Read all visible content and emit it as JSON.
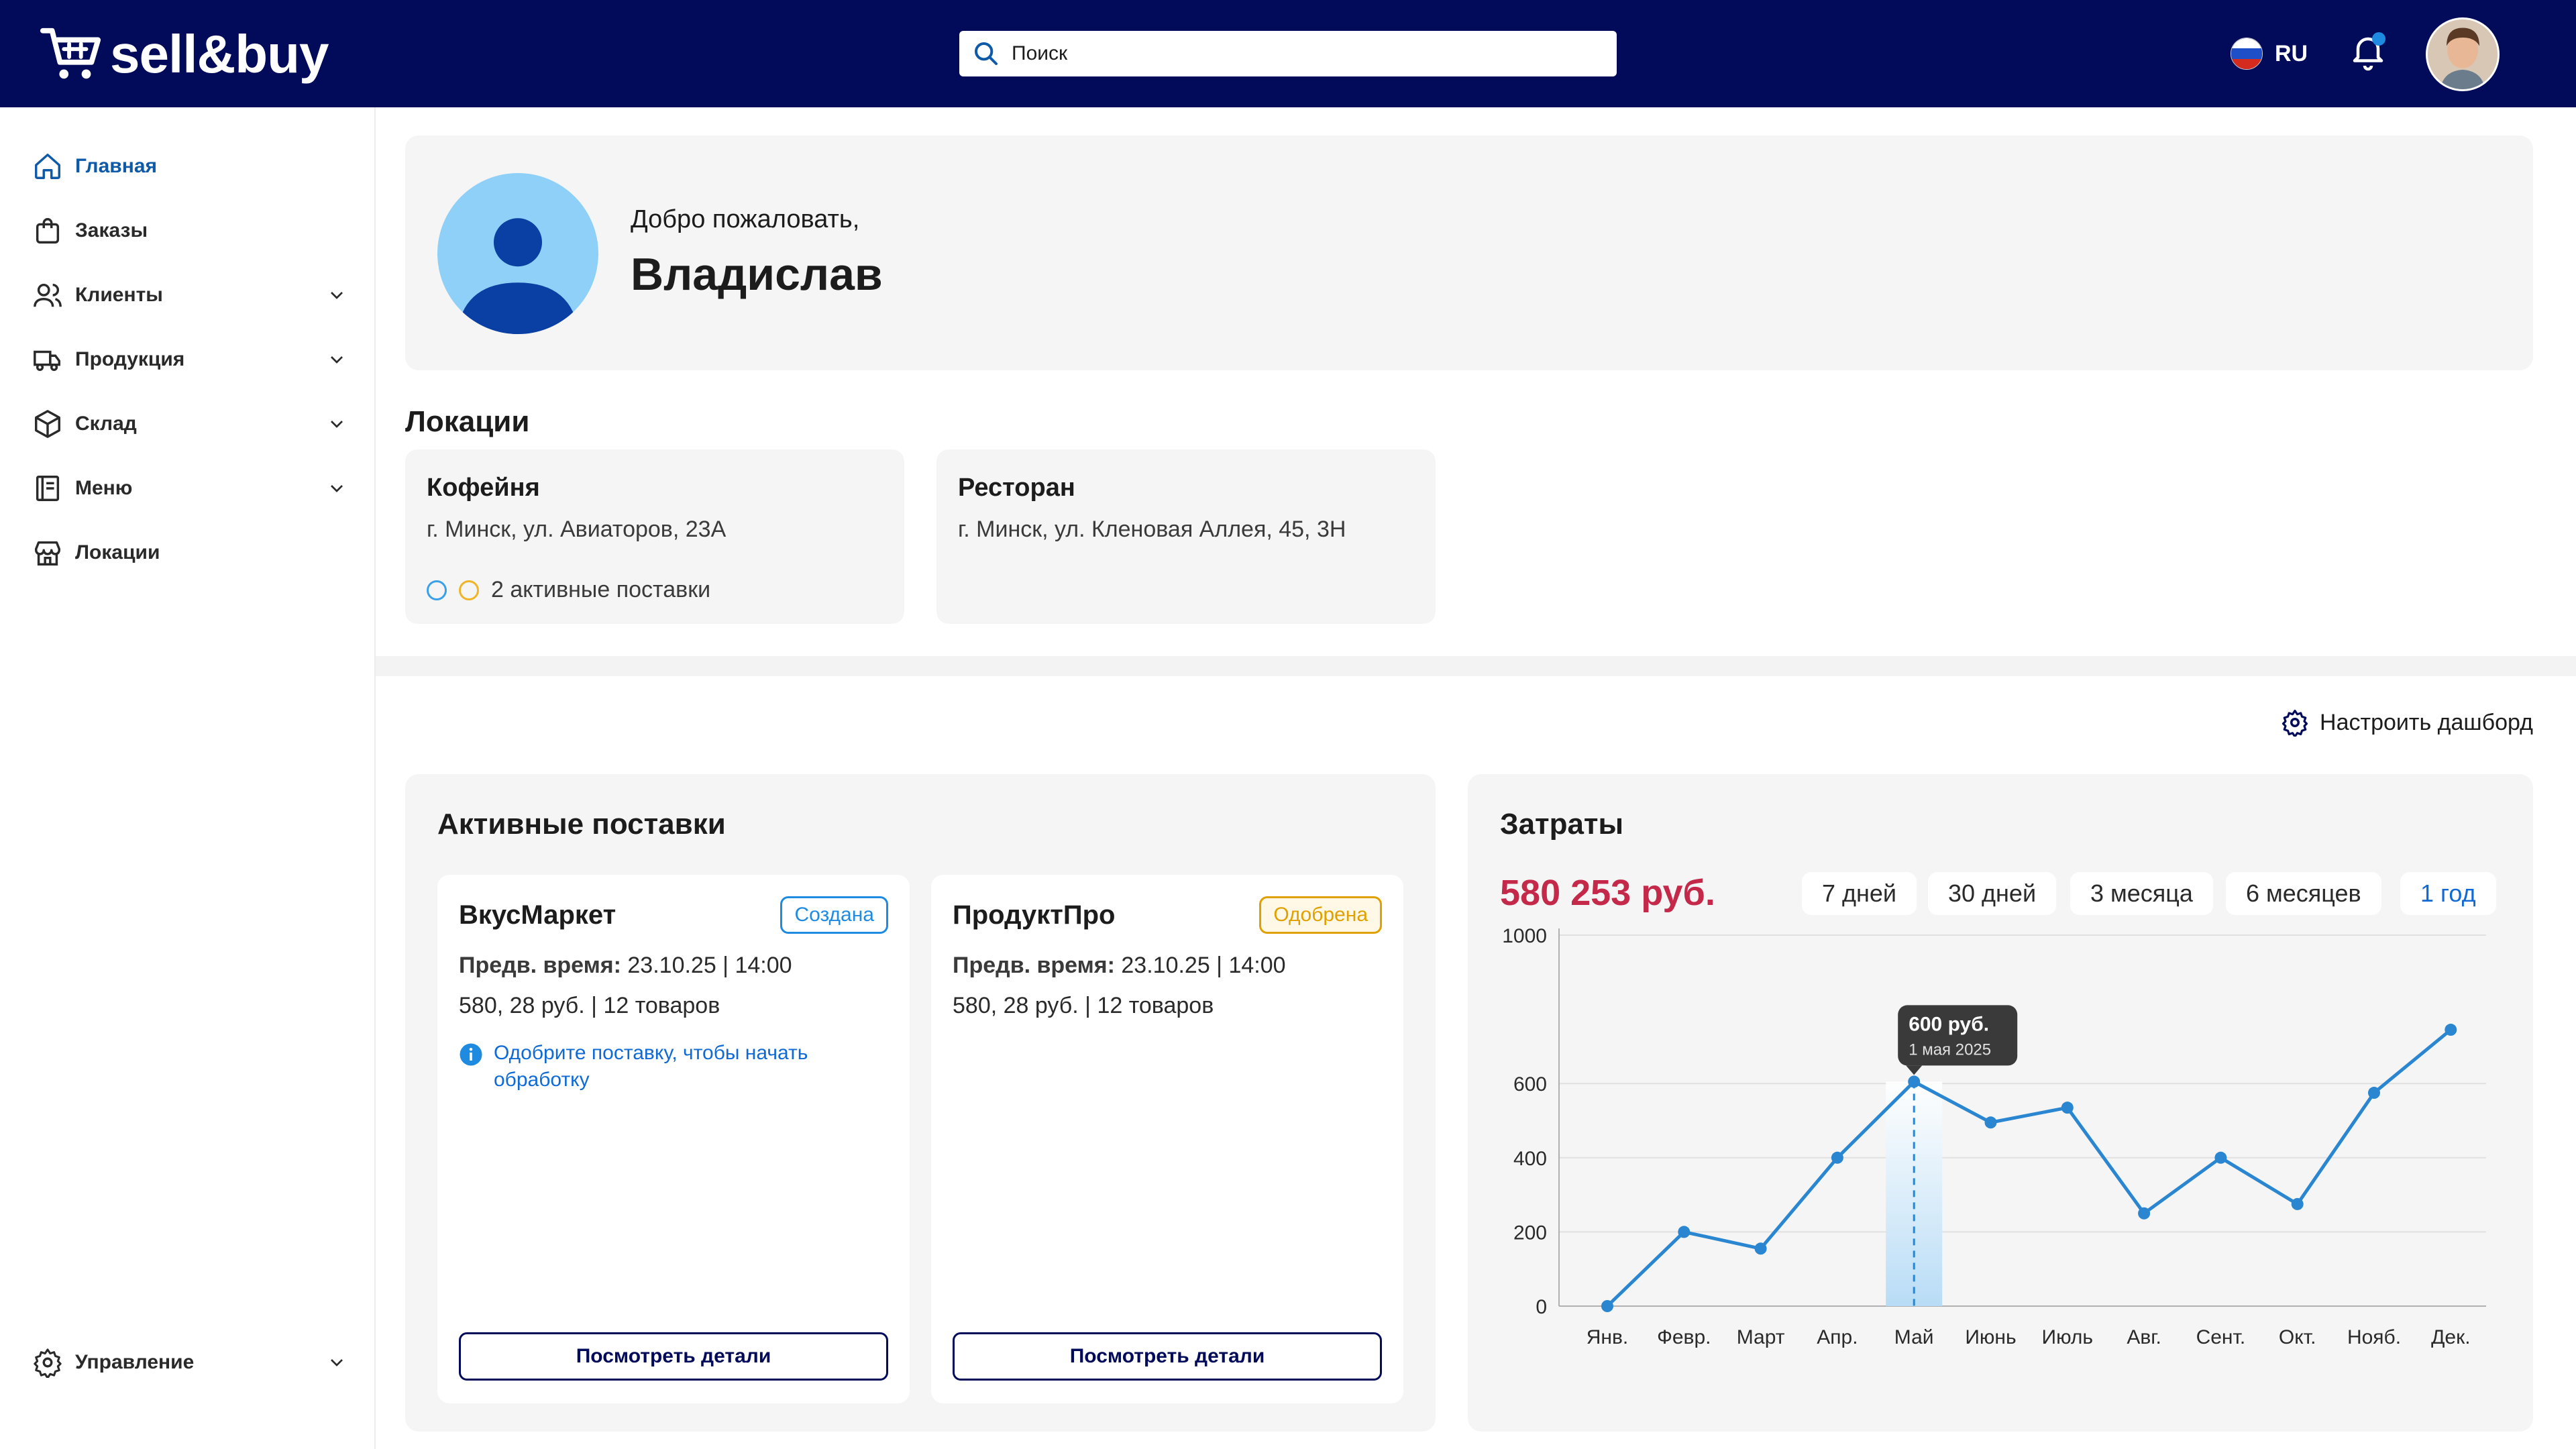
{
  "header": {
    "brand": "sell&buy",
    "search_placeholder": "Поиск",
    "language_code": "RU"
  },
  "sidebar": {
    "items": [
      {
        "label": "Главная",
        "icon": "home-icon",
        "active": true
      },
      {
        "label": "Заказы",
        "icon": "shopping-bag-icon",
        "active": false
      },
      {
        "label": "Клиенты",
        "icon": "users-icon",
        "active": false,
        "expandable": true
      },
      {
        "label": "Продукция",
        "icon": "truck-icon",
        "active": false,
        "expandable": true
      },
      {
        "label": "Склад",
        "icon": "box-icon",
        "active": false,
        "expandable": true
      },
      {
        "label": "Меню",
        "icon": "menu-book-icon",
        "active": false,
        "expandable": true
      },
      {
        "label": "Локации",
        "icon": "store-icon",
        "active": false
      }
    ],
    "footer_item": {
      "label": "Управление",
      "icon": "gear-icon",
      "expandable": true
    }
  },
  "welcome": {
    "subtitle": "Добро пожаловать,",
    "name": "Владислав"
  },
  "locations": {
    "title": "Локации",
    "items": [
      {
        "name": "Кофейня",
        "address": "г. Минск, ул. Авиаторов, 23А",
        "status": "2 активные поставки"
      },
      {
        "name": "Ресторан",
        "address": "г. Минск, ул. Кленовая Аллея, 45, 3Н",
        "status": ""
      }
    ]
  },
  "configure_dashboard": "Настроить дашборд",
  "deliveries": {
    "title": "Активные поставки",
    "items": [
      {
        "supplier": "ВкусМаркет",
        "status": "Создана",
        "status_color": "#1e8ae0",
        "time_label": "Предв. время:",
        "time_value": "23.10.25 | 14:00",
        "summary": "580, 28 руб. | 12 товаров",
        "hint": "Одобрите поставку, чтобы начать обработку",
        "button": "Посмотреть детали"
      },
      {
        "supplier": "ПродуктПро",
        "status": "Одобрена",
        "status_color": "#e0a000",
        "time_label": "Предв. время:",
        "time_value": "23.10.25 | 14:00",
        "summary": "580, 28 руб. | 12 товаров",
        "hint": "",
        "button": "Посмотреть детали"
      }
    ]
  },
  "costs": {
    "title": "Затраты",
    "total": "580 253 руб.",
    "periods": [
      "7 дней",
      "30 дней",
      "3 месяца",
      "6 месяцев",
      "1 год"
    ],
    "active_period": "1 год",
    "tooltip": {
      "value": "600 руб.",
      "date": "1 мая 2025"
    }
  },
  "colors": {
    "header_bg": "#020b5a",
    "accent": "#0f6ad6",
    "line": "#2a86d0",
    "total": "#c4294a",
    "badge_created": "#1e8ae0",
    "badge_approved": "#e0a000"
  },
  "chart_data": {
    "type": "line",
    "x": [
      "Янв.",
      "Февр.",
      "Март",
      "Апр.",
      "Май",
      "Июнь",
      "Июль",
      "Авг.",
      "Сент.",
      "Окт.",
      "Нояб.",
      "Дек."
    ],
    "series": [
      {
        "values": [
          0,
          200,
          155,
          400,
          605,
          495,
          535,
          250,
          400,
          275,
          575,
          745
        ]
      }
    ],
    "y_ticks": [
      0,
      200,
      400,
      600,
      1000
    ],
    "ylim": [
      0,
      1000
    ],
    "grid": true,
    "highlight_index": 4
  }
}
